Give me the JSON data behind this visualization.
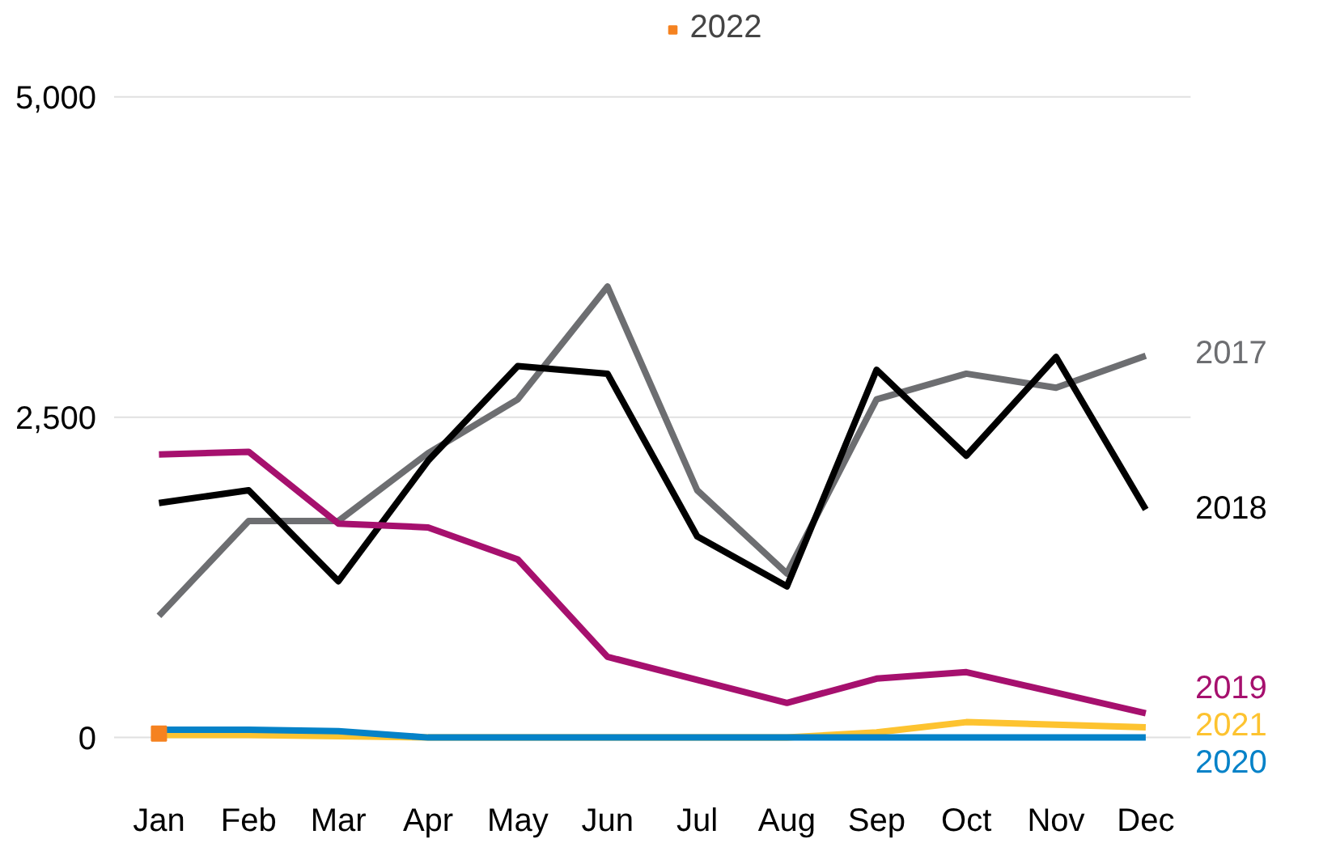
{
  "chart_data": {
    "type": "line",
    "categories": [
      "Jan",
      "Feb",
      "Mar",
      "Apr",
      "May",
      "Jun",
      "Jul",
      "Aug",
      "Sep",
      "Oct",
      "Nov",
      "Dec"
    ],
    "series": [
      {
        "name": "2017",
        "color": "#6d6e71",
        "values": [
          950,
          1690,
          1690,
          2220,
          2640,
          3520,
          1930,
          1280,
          2640,
          2840,
          2730,
          2980
        ]
      },
      {
        "name": "2018",
        "color": "#000000",
        "values": [
          1830,
          1930,
          1220,
          2160,
          2900,
          2840,
          1570,
          1180,
          2870,
          2200,
          2970,
          1780
        ]
      },
      {
        "name": "2019",
        "color": "#a6106e",
        "values": [
          2210,
          2230,
          1670,
          1640,
          1390,
          630,
          450,
          270,
          460,
          510,
          350,
          190
        ]
      },
      {
        "name": "2021",
        "color": "#fdc330",
        "values": [
          20,
          20,
          10,
          0,
          0,
          0,
          0,
          0,
          40,
          120,
          100,
          80
        ]
      },
      {
        "name": "2020",
        "color": "#0582c8",
        "values": [
          60,
          60,
          50,
          0,
          0,
          0,
          0,
          0,
          0,
          0,
          0,
          0
        ]
      },
      {
        "name": "2022",
        "color": "#f58220",
        "marker": "square",
        "values": [
          30,
          null,
          null,
          null,
          null,
          null,
          null,
          null,
          null,
          null,
          null,
          null
        ]
      }
    ],
    "ylim": [
      0,
      5000
    ],
    "yticks": [
      {
        "value": 0,
        "label": "0"
      },
      {
        "value": 2500,
        "label": "2,500"
      },
      {
        "value": 5000,
        "label": "5,000"
      }
    ],
    "grid": "y",
    "legend": "top",
    "marker": "none"
  }
}
